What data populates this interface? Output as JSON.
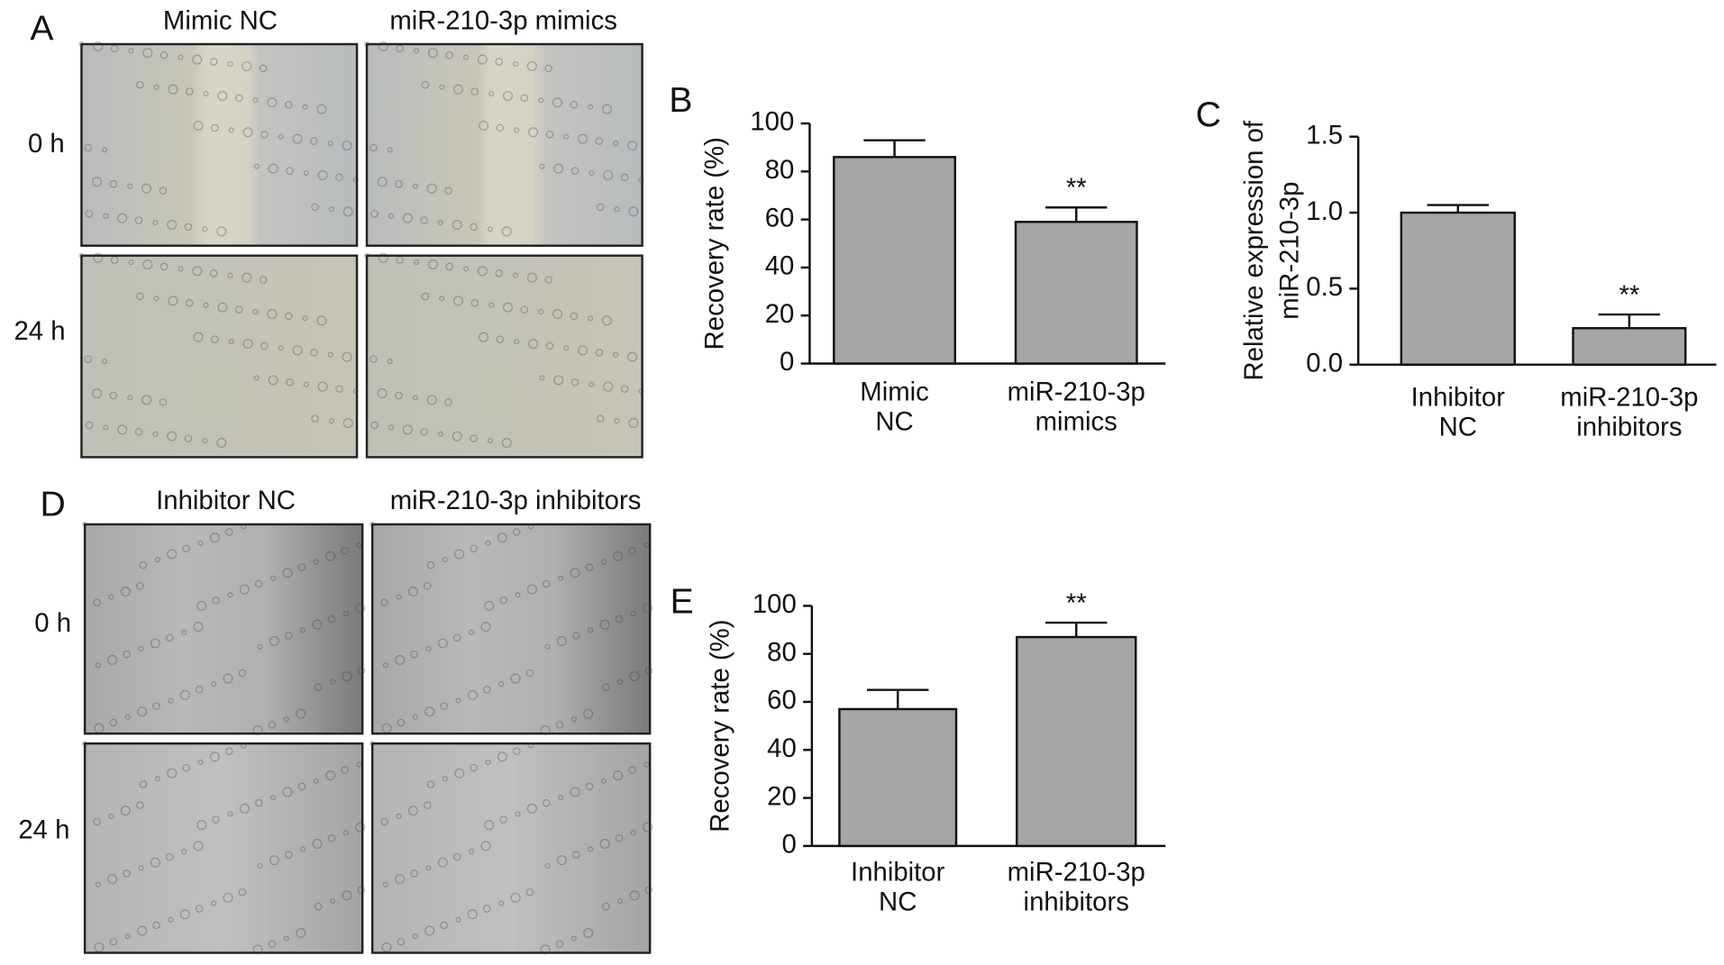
{
  "image_panels": [
    {
      "panel_label": "A",
      "columns": [
        "Mimic NC",
        "miR-210-3p mimics"
      ],
      "rows": [
        "0 h",
        "24 h"
      ]
    },
    {
      "panel_label": "D",
      "columns": [
        "Inhibitor NC",
        "miR-210-3p inhibitors"
      ],
      "rows": [
        "0 h",
        "24 h"
      ]
    }
  ],
  "chart_data": [
    {
      "type": "bar",
      "panel_label": "B",
      "y_label": "Recovery rate (%)",
      "categories": [
        "Mimic NC",
        "miR-210-3p mimics"
      ],
      "values": [
        86,
        59
      ],
      "errors": [
        7,
        6
      ],
      "significance": [
        null,
        "**"
      ],
      "color": "#a6a6a6",
      "ylim": [
        0,
        100
      ],
      "yticks": [
        0,
        20,
        40,
        60,
        80,
        100
      ]
    },
    {
      "type": "bar",
      "panel_label": "C",
      "y_label": [
        "Relative expression of",
        "miR-210-3p"
      ],
      "categories": [
        "Inhibitor NC",
        "miR-210-3p inhibitors"
      ],
      "values": [
        1.0,
        0.24
      ],
      "errors": [
        0.05,
        0.09
      ],
      "significance": [
        null,
        "**"
      ],
      "color": "#a6a6a6",
      "ylim": [
        0,
        1.5
      ],
      "yticks": [
        {
          "value": 0,
          "label": "0.0"
        },
        0.5,
        {
          "value": 1,
          "label": "1.0"
        },
        1.5
      ]
    },
    {
      "type": "bar",
      "panel_label": "E",
      "y_label": "Recovery rate (%)",
      "categories": [
        "Inhibitor NC",
        "miR-210-3p inhibitors"
      ],
      "values": [
        57,
        87
      ],
      "errors": [
        8,
        6
      ],
      "significance": [
        null,
        "**"
      ],
      "color": "#a6a6a6",
      "ylim": [
        0,
        100
      ],
      "yticks": [
        0,
        20,
        40,
        60,
        80,
        100
      ]
    }
  ]
}
